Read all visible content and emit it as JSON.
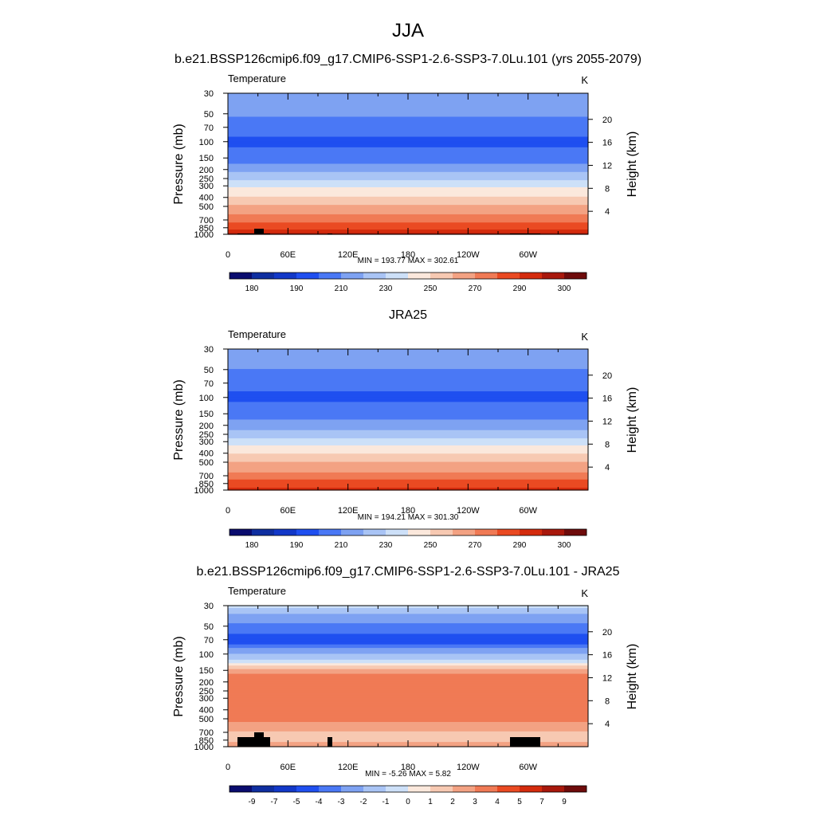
{
  "figure": {
    "title": "JJA",
    "units": "K",
    "panel_title_left": "Temperature"
  },
  "chart_data": [
    {
      "type": "heatmap",
      "title": "b.e21.BSSP126cmip6.f09_g17.CMIP6-SSP1-2.6-SSP3-7.0Lu.101 (yrs 2055-2079)",
      "variable": "Temperature",
      "units": "K",
      "ylabel": "Pressure (mb)",
      "ylabel_right": "Height (km)",
      "y_log_scale": true,
      "ylim": [
        1000,
        30
      ],
      "pressure_ticks": [
        30,
        50,
        70,
        100,
        150,
        200,
        250,
        300,
        400,
        500,
        700,
        850,
        1000
      ],
      "height_ticks": [
        4,
        8,
        12,
        16,
        20
      ],
      "x_ticks": [
        "0",
        "60E",
        "120E",
        "180",
        "120W",
        "60W"
      ],
      "profile": [
        {
          "p": 30,
          "v": 218
        },
        {
          "p": 50,
          "v": 212
        },
        {
          "p": 70,
          "v": 204
        },
        {
          "p": 100,
          "v": 198
        },
        {
          "p": 150,
          "v": 204
        },
        {
          "p": 200,
          "v": 216
        },
        {
          "p": 250,
          "v": 228
        },
        {
          "p": 300,
          "v": 238
        },
        {
          "p": 400,
          "v": 251
        },
        {
          "p": 500,
          "v": 262
        },
        {
          "p": 700,
          "v": 276
        },
        {
          "p": 850,
          "v": 287
        },
        {
          "p": 1000,
          "v": 296
        }
      ],
      "stats": "MIN = 193.77  MAX = 302.61",
      "min": 193.77,
      "max": 302.61,
      "colorbar_labels": [
        "180",
        "190",
        "210",
        "230",
        "250",
        "270",
        "290",
        "300"
      ],
      "topography": true
    },
    {
      "type": "heatmap",
      "title": "JRA25",
      "variable": "Temperature",
      "units": "K",
      "ylabel": "Pressure (mb)",
      "ylabel_right": "Height (km)",
      "y_log_scale": true,
      "ylim": [
        1000,
        30
      ],
      "pressure_ticks": [
        30,
        50,
        70,
        100,
        150,
        200,
        250,
        300,
        400,
        500,
        700,
        850,
        1000
      ],
      "height_ticks": [
        4,
        8,
        12,
        16,
        20
      ],
      "x_ticks": [
        "0",
        "60E",
        "120E",
        "180",
        "120W",
        "60W"
      ],
      "profile": [
        {
          "p": 30,
          "v": 216
        },
        {
          "p": 50,
          "v": 210
        },
        {
          "p": 70,
          "v": 203
        },
        {
          "p": 100,
          "v": 198
        },
        {
          "p": 150,
          "v": 205
        },
        {
          "p": 200,
          "v": 215
        },
        {
          "p": 250,
          "v": 225
        },
        {
          "p": 300,
          "v": 235
        },
        {
          "p": 400,
          "v": 249
        },
        {
          "p": 500,
          "v": 260
        },
        {
          "p": 700,
          "v": 274
        },
        {
          "p": 850,
          "v": 285
        },
        {
          "p": 1000,
          "v": 293
        }
      ],
      "stats": "MIN = 194.21  MAX = 301.30",
      "min": 194.21,
      "max": 301.3,
      "colorbar_labels": [
        "180",
        "190",
        "210",
        "230",
        "250",
        "270",
        "290",
        "300"
      ],
      "topography": false
    },
    {
      "type": "heatmap",
      "title": "b.e21.BSSP126cmip6.f09_g17.CMIP6-SSP1-2.6-SSP3-7.0Lu.101 - JRA25",
      "variable": "Temperature",
      "units": "K",
      "ylabel": "Pressure (mb)",
      "ylabel_right": "Height (km)",
      "y_log_scale": true,
      "ylim": [
        1000,
        30
      ],
      "pressure_ticks": [
        30,
        50,
        70,
        100,
        150,
        200,
        250,
        300,
        400,
        500,
        700,
        850,
        1000
      ],
      "height_ticks": [
        4,
        8,
        12,
        16,
        20
      ],
      "x_ticks": [
        "0",
        "60E",
        "120E",
        "180",
        "120W",
        "60W"
      ],
      "profile": [
        {
          "p": 30,
          "v": -0.5
        },
        {
          "p": 40,
          "v": -2.5
        },
        {
          "p": 55,
          "v": -3.5
        },
        {
          "p": 65,
          "v": -4.5
        },
        {
          "p": 75,
          "v": -4.5
        },
        {
          "p": 90,
          "v": -2.5
        },
        {
          "p": 110,
          "v": -1.5
        },
        {
          "p": 130,
          "v": 0.5
        },
        {
          "p": 150,
          "v": 2.5
        },
        {
          "p": 175,
          "v": 3.5
        },
        {
          "p": 250,
          "v": 3.5
        },
        {
          "p": 400,
          "v": 3.5
        },
        {
          "p": 500,
          "v": 3.5
        },
        {
          "p": 600,
          "v": 2.5
        },
        {
          "p": 800,
          "v": 1.5
        },
        {
          "p": 1000,
          "v": 2.5
        }
      ],
      "stats": "MIN =  -5.26  MAX =   5.82",
      "min": -5.26,
      "max": 5.82,
      "colorbar_labels": [
        "-9",
        "-7",
        "-5",
        "-4",
        "-3",
        "-2",
        "-1",
        "0",
        "1",
        "2",
        "3",
        "4",
        "5",
        "7",
        "9"
      ],
      "topography": true
    }
  ],
  "colors": {
    "abs_palette": [
      "#0a0c6e",
      "#0f2ea0",
      "#1238c8",
      "#1f4ff0",
      "#4a78f5",
      "#7ea2f2",
      "#a9c4f5",
      "#cde0f8",
      "#fbe8dc",
      "#f7c9b2",
      "#f3a283",
      "#f07a55",
      "#ea4a22",
      "#d42b0d",
      "#a8180c",
      "#6e0b0b"
    ],
    "diff_palette": [
      "#0a0c6e",
      "#0f2ea0",
      "#1238c8",
      "#1f4ff0",
      "#4a78f5",
      "#7ea2f2",
      "#a9c4f5",
      "#cde0f8",
      "#fbe8dc",
      "#f7c9b2",
      "#f3a283",
      "#f07a55",
      "#ea4a22",
      "#d42b0d",
      "#a8180c",
      "#6e0b0b"
    ]
  }
}
